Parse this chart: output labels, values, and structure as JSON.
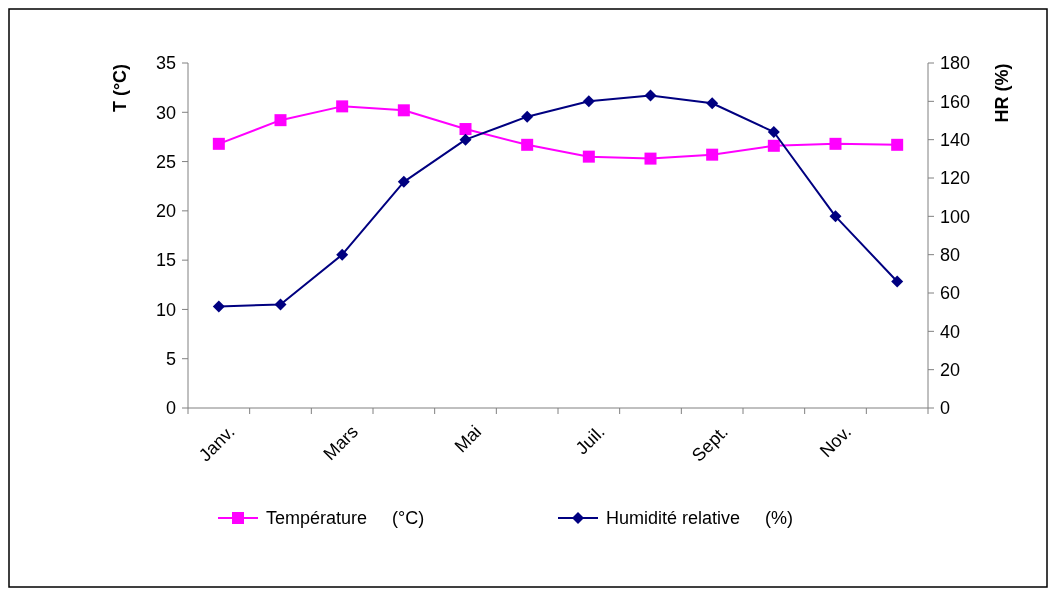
{
  "chart_data": {
    "type": "line",
    "ylabel": "T (°C)",
    "y2label": "HR (%)",
    "categories": [
      "Janv.",
      null,
      "Mars",
      null,
      "Mai",
      null,
      "Juil.",
      null,
      "Sept.",
      null,
      "Nov.",
      null
    ],
    "series": [
      {
        "name": "Température     (°C)",
        "color": "#ff00ff",
        "marker": "square",
        "values": [
          26.8,
          29.2,
          30.6,
          30.2,
          28.3,
          26.7,
          25.5,
          25.3,
          25.7,
          26.6,
          26.8,
          26.7
        ]
      },
      {
        "name": "Humidité relative     (%)",
        "color": "#000080",
        "marker": "diamond",
        "axis": "y2",
        "values": [
          53,
          54,
          80,
          118,
          140,
          152,
          160,
          163,
          159,
          144,
          100,
          66
        ]
      }
    ],
    "ylim": [
      0,
      35
    ],
    "yticks": [
      0,
      5,
      10,
      15,
      20,
      25,
      30,
      35
    ],
    "y2lim": [
      0,
      180
    ],
    "y2ticks": [
      0,
      20,
      40,
      60,
      80,
      100,
      120,
      140,
      160,
      180
    ],
    "grid": false,
    "legend": "bottom"
  }
}
